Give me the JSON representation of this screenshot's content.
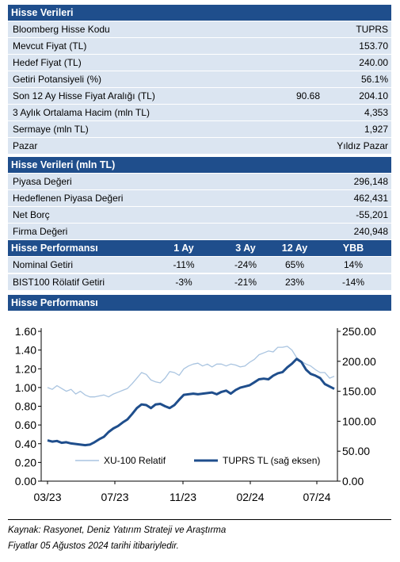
{
  "stock_data": {
    "title": "Hisse Verileri",
    "rows": [
      {
        "label": "Bloomberg Hisse Kodu",
        "value": "TUPRS",
        "value2": ""
      },
      {
        "label": "Mevcut Fiyat (TL)",
        "value": "153.70",
        "value2": ""
      },
      {
        "label": "Hedef Fiyat (TL)",
        "value": "240.00",
        "value2": ""
      },
      {
        "label": "Getiri Potansiyeli (%)",
        "value": "56.1%",
        "value2": ""
      },
      {
        "label": "Son 12 Ay Hisse Fiyat Aralığı (TL)",
        "value": "204.10",
        "value2": "90.68"
      },
      {
        "label": "3 Aylık Ortalama Hacim (mln TL)",
        "value": "4,353",
        "value2": ""
      },
      {
        "label": "Sermaye (mln TL)",
        "value": "1,927",
        "value2": ""
      },
      {
        "label": "Pazar",
        "value": "Yıldız Pazar",
        "value2": ""
      }
    ]
  },
  "stock_data_mln": {
    "title": "Hisse Verileri (mln TL)",
    "rows": [
      {
        "label": "Piyasa Değeri",
        "value": "296,148"
      },
      {
        "label": "Hedeflenen Piyasa Değeri",
        "value": "462,431"
      },
      {
        "label": "Net Borç",
        "value": "-55,201"
      },
      {
        "label": "Firma Değeri",
        "value": "240,948"
      }
    ]
  },
  "performance": {
    "title": "Hisse Performansı",
    "columns": [
      "1 Ay",
      "3 Ay",
      "12 Ay",
      "YBB"
    ],
    "rows": [
      {
        "label": "Nominal Getiri",
        "values": [
          "-11%",
          "-24%",
          "65%",
          "14%"
        ]
      },
      {
        "label": "BIST100 Rölatif Getiri",
        "values": [
          "-3%",
          "-21%",
          "23%",
          "-14%"
        ]
      }
    ]
  },
  "chart_section_title": "Hisse Performansı",
  "colors": {
    "header_bg": "#1f4e8c",
    "row_bg_light": "#dbe5f1",
    "relative_line": "#a9c4e0",
    "price_line": "#1f4e8c"
  },
  "chart_data": {
    "type": "line",
    "x_tick_labels": [
      "03/23",
      "07/23",
      "11/23",
      "02/24",
      "07/24"
    ],
    "y_left": {
      "ticks": [
        "0.00",
        "0.20",
        "0.40",
        "0.60",
        "0.80",
        "1.00",
        "1.20",
        "1.40",
        "1.60"
      ],
      "lim": [
        0,
        1.6
      ]
    },
    "y_right": {
      "ticks": [
        "0.00",
        "50.00",
        "100.00",
        "150.00",
        "200.00",
        "250.00"
      ],
      "lim": [
        0,
        250
      ]
    },
    "grid": false,
    "legend_position": "bottom-inside",
    "series": [
      {
        "name": "XU-100 Relatif",
        "axis": "left",
        "values": [
          1.0,
          0.98,
          1.02,
          0.99,
          0.96,
          0.98,
          0.93,
          0.96,
          0.92,
          0.9,
          0.9,
          0.91,
          0.92,
          0.9,
          0.93,
          0.95,
          0.97,
          0.99,
          1.04,
          1.1,
          1.16,
          1.14,
          1.08,
          1.06,
          1.05,
          1.1,
          1.17,
          1.16,
          1.13,
          1.2,
          1.23,
          1.25,
          1.26,
          1.23,
          1.25,
          1.22,
          1.25,
          1.25,
          1.23,
          1.25,
          1.24,
          1.22,
          1.23,
          1.27,
          1.3,
          1.35,
          1.37,
          1.39,
          1.38,
          1.43,
          1.43,
          1.44,
          1.4,
          1.32,
          1.28,
          1.25,
          1.23,
          1.19,
          1.16,
          1.16,
          1.1,
          1.12
        ]
      },
      {
        "name": "TUPRS TL (sağ eksen)",
        "axis": "right",
        "values": [
          68,
          66,
          67,
          64,
          65,
          63,
          62,
          61,
          60,
          61,
          65,
          70,
          74,
          82,
          88,
          92,
          98,
          103,
          112,
          122,
          128,
          127,
          122,
          128,
          129,
          125,
          122,
          127,
          136,
          144,
          145,
          146,
          145,
          146,
          147,
          148,
          145,
          149,
          151,
          146,
          152,
          156,
          158,
          160,
          165,
          170,
          171,
          170,
          176,
          180,
          182,
          190,
          196,
          204,
          199,
          186,
          179,
          176,
          172,
          162,
          158,
          154
        ]
      }
    ]
  },
  "source_lines": [
    "Kaynak: Rasyonet, Deniz Yatırım Strateji ve Araştırma",
    "Fiyatlar 05 Ağustos 2024 tarihi itibariyledir."
  ]
}
